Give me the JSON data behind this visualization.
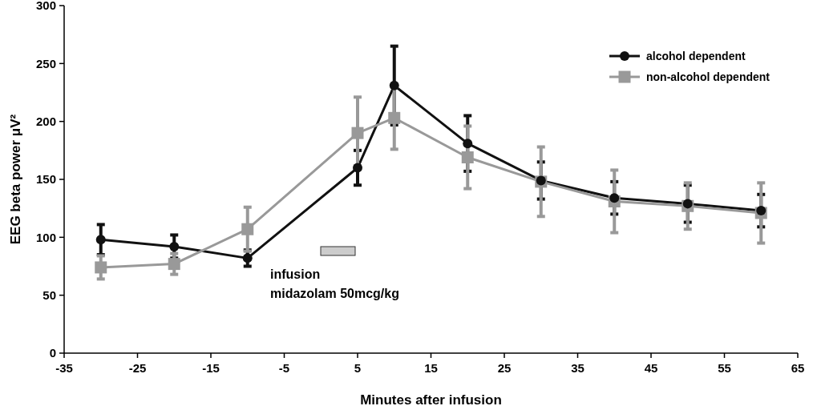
{
  "chart_data": {
    "type": "line",
    "xlabel": "Minutes after infusion",
    "ylabel": "EEG beta power μV²",
    "x": [
      -30,
      -20,
      -10,
      5,
      10,
      20,
      30,
      40,
      50,
      60
    ],
    "series": [
      {
        "name": "alcohol dependent",
        "color": "#111111",
        "marker": "circle",
        "values": [
          98,
          92,
          82,
          160,
          231,
          181,
          149,
          134,
          129,
          123
        ],
        "errors": [
          13,
          10,
          7,
          15,
          34,
          24,
          16,
          14,
          16,
          14
        ]
      },
      {
        "name": "non-alcohol dependent",
        "color": "#999999",
        "marker": "square",
        "values": [
          74,
          77,
          107,
          190,
          203,
          169,
          148,
          131,
          127,
          121
        ],
        "errors": [
          10,
          9,
          19,
          31,
          27,
          27,
          30,
          27,
          20,
          26
        ]
      }
    ],
    "xlim": [
      -35,
      65
    ],
    "xticks": [
      -35,
      -25,
      -15,
      -5,
      5,
      15,
      25,
      35,
      45,
      55,
      65
    ],
    "ylim": [
      0,
      300
    ],
    "yticks": [
      0,
      50,
      100,
      150,
      200,
      250,
      300
    ],
    "grid": false,
    "legend": "top right",
    "line_style": "solid",
    "annotations": [
      "infusion\nmidazolam 50mcg/kg"
    ]
  }
}
